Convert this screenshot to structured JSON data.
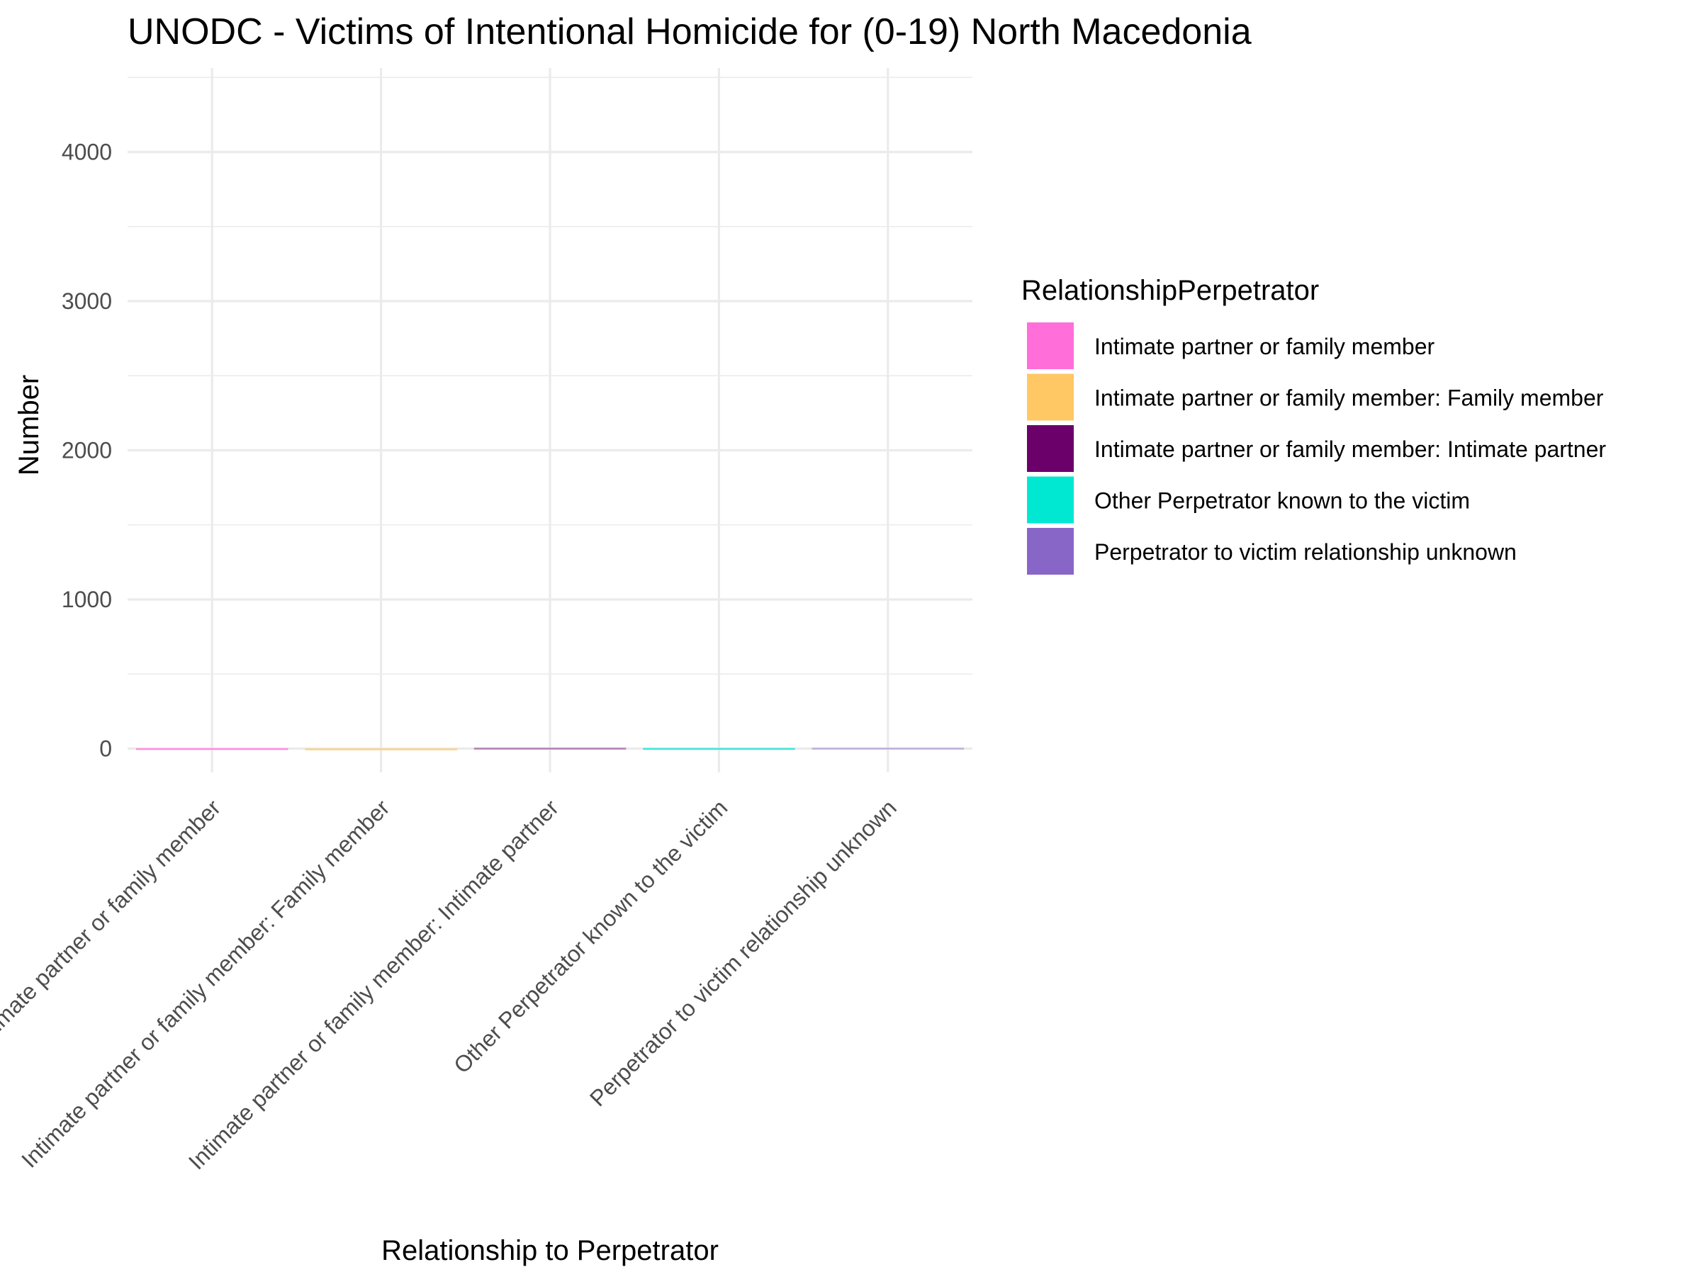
{
  "chart_data": {
    "type": "bar",
    "title": "UNODC - Victims of Intentional Homicide for (0-19) North Macedonia",
    "xlabel": "Relationship to Perpetrator",
    "ylabel": "Number",
    "categories": [
      "Intimate partner or family member",
      "Intimate partner or family member: Family member",
      "Intimate partner or family member: Intimate partner",
      "Other Perpetrator known to the victim",
      "Perpetrator to victim relationship unknown"
    ],
    "values": [
      3,
      1,
      0,
      4,
      0
    ],
    "colors": [
      "#ff6ed9",
      "#ffc864",
      "#6b006b",
      "#00e8d2",
      "#8866c8"
    ],
    "ylim": [
      -200,
      4550
    ],
    "yticks": [
      0,
      1000,
      2000,
      3000,
      4000
    ],
    "grid": true,
    "legend": {
      "title": "RelationshipPerpetrator",
      "position": "right",
      "entries": [
        "Intimate partner or family member",
        "Intimate partner or family member: Family member",
        "Intimate partner or family member: Intimate partner",
        "Other Perpetrator known to the victim",
        "Perpetrator to victim relationship unknown"
      ]
    }
  }
}
